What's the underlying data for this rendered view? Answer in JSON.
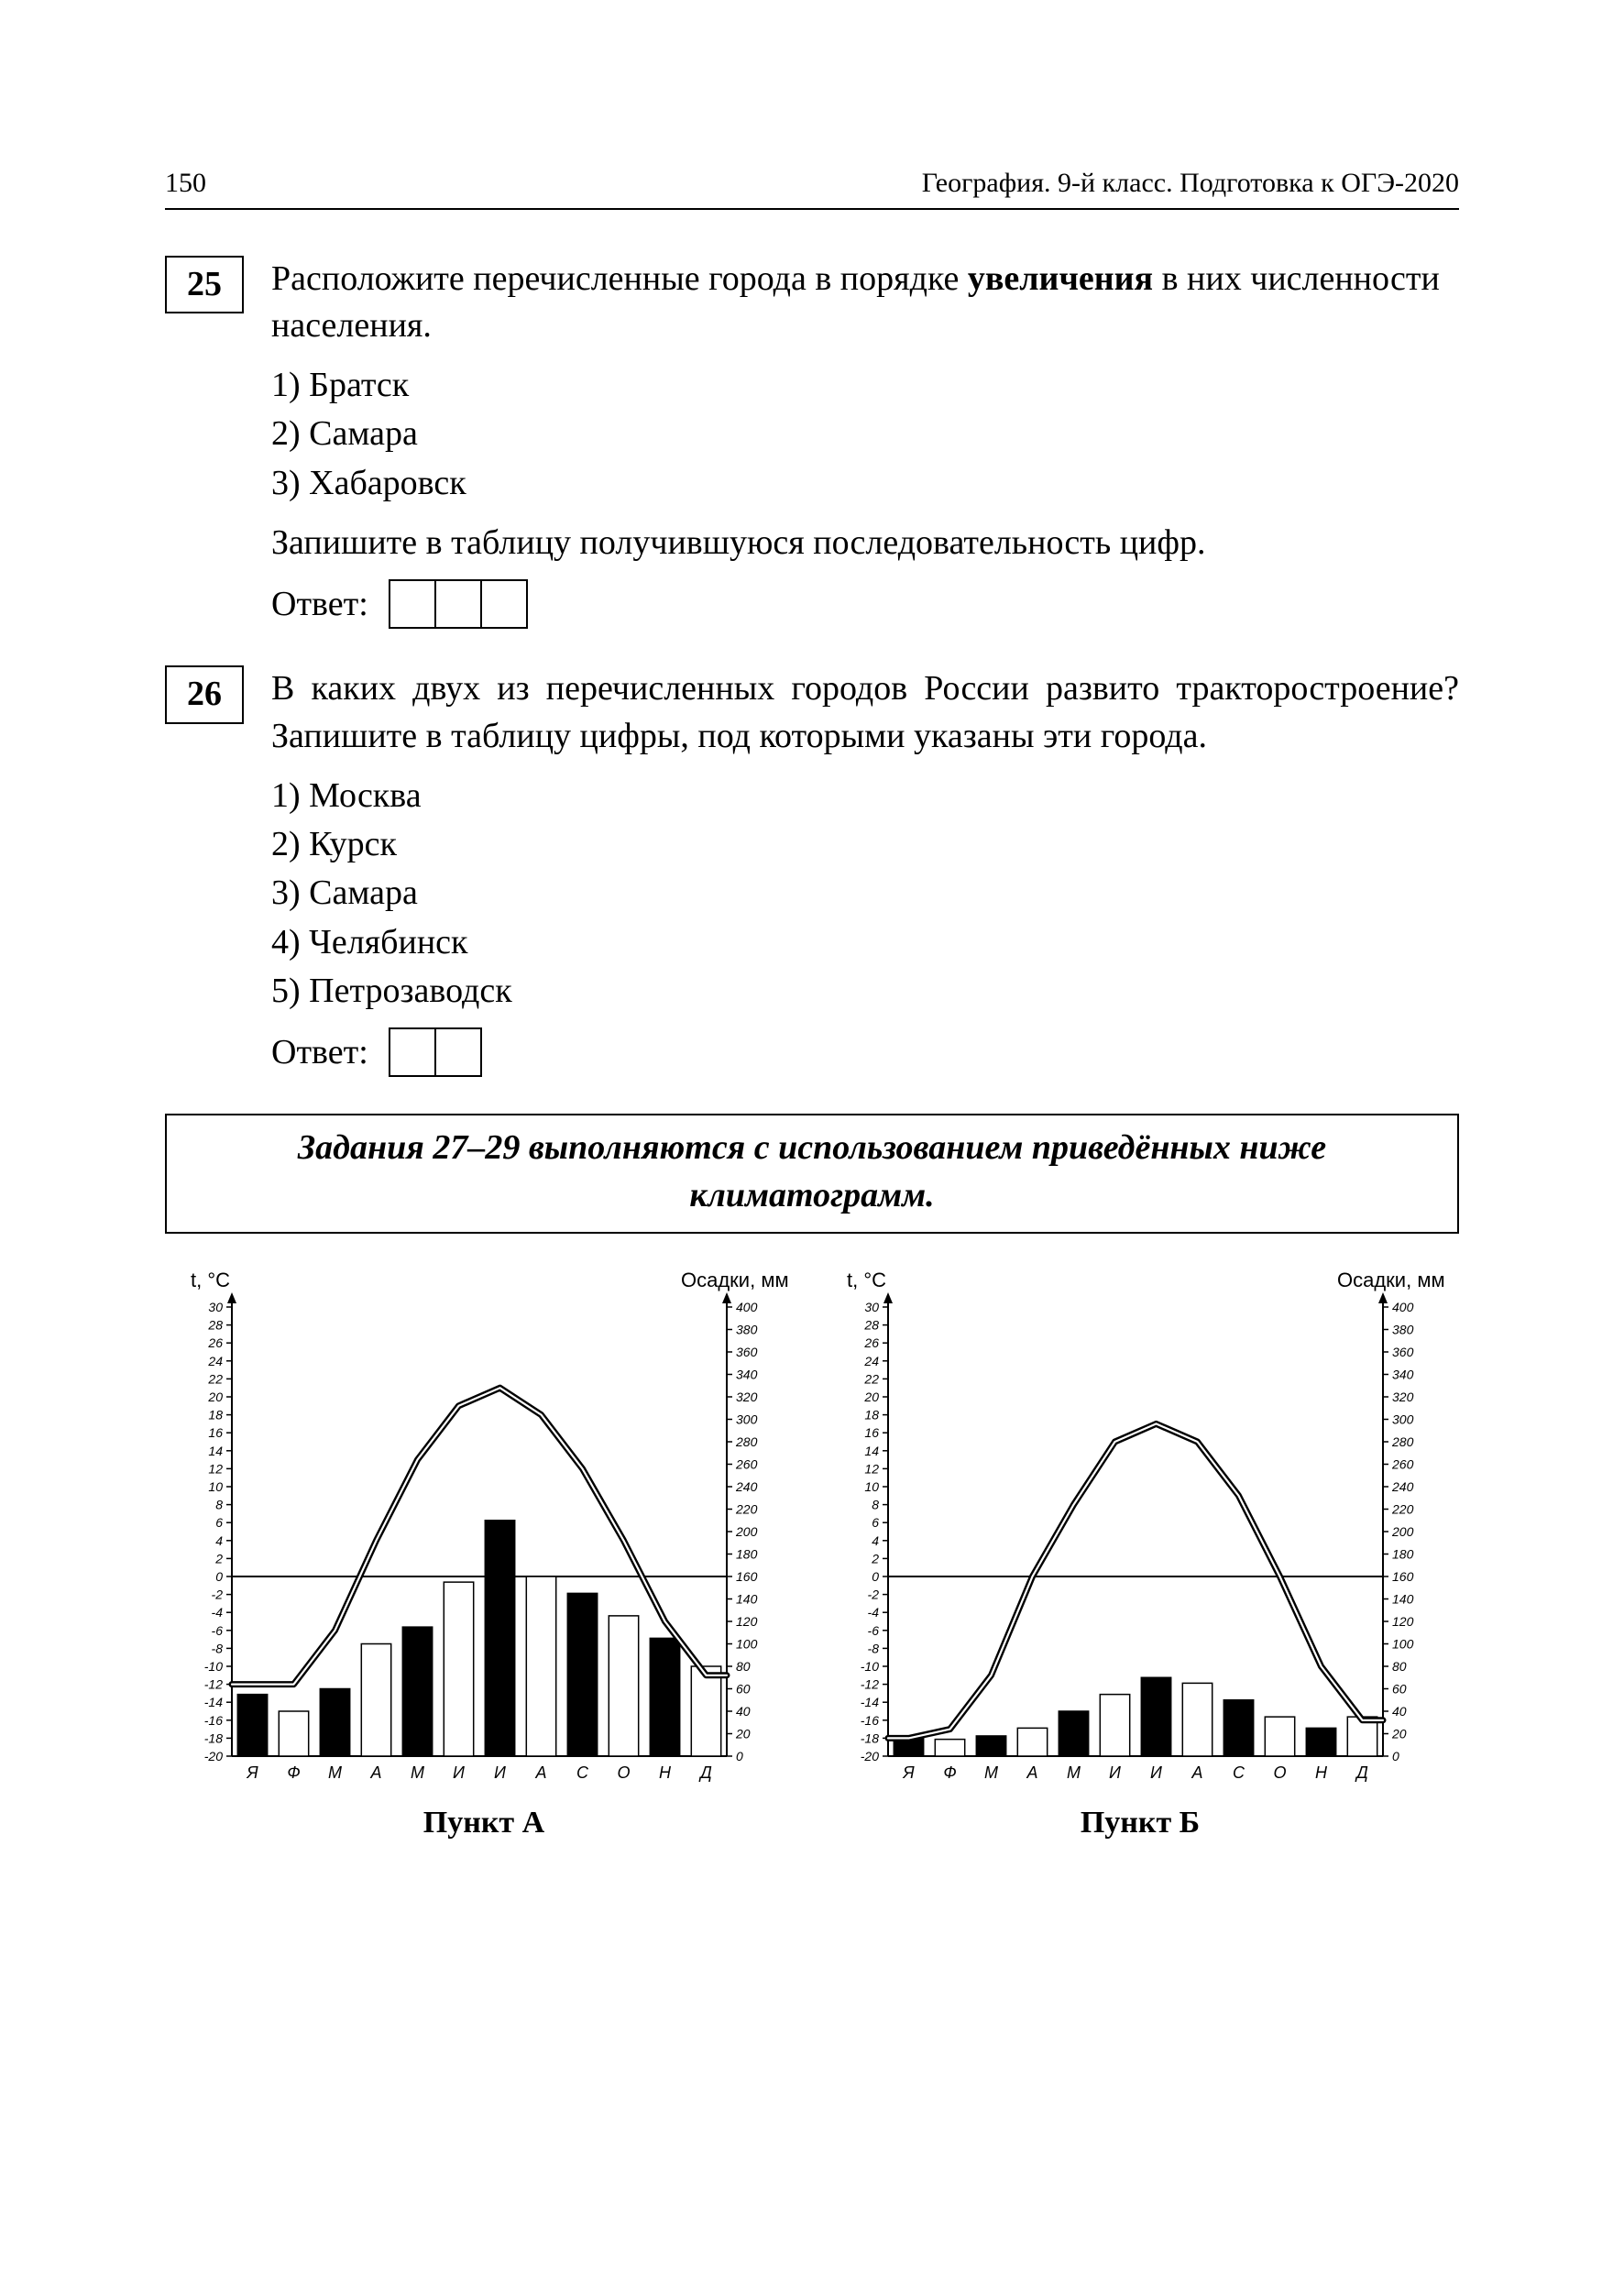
{
  "header": {
    "page_number": "150",
    "book_title": "География. 9-й класс. Подготовка к ОГЭ-2020"
  },
  "task25": {
    "number": "25",
    "text_before_bold": "Расположите перечисленные города в порядке ",
    "bold_word": "увеличения",
    "text_after_bold": " в них численности населения.",
    "options": [
      "1) Братск",
      "2) Самара",
      "3) Хабаровск"
    ],
    "instruction": "Запишите в таблицу получившуюся последовательность цифр.",
    "answer_label": "Ответ:",
    "answer_cells": 3
  },
  "task26": {
    "number": "26",
    "text": "В каких двух из перечисленных городов России развито трак­торостроение? Запишите в таблицу цифры, под которыми указаны эти города.",
    "options": [
      "1) Москва",
      "2) Курск",
      "3) Самара",
      "4) Челябинск",
      "5) Петрозаводск"
    ],
    "answer_label": "Ответ:",
    "answer_cells": 2
  },
  "instruction_box": {
    "line1": "Задания 27–29 выполняются с использованием приведённых ниже",
    "line2": "климатограмм."
  },
  "chart_common": {
    "left_axis_label": "t, °C",
    "right_axis_label": "Осадки, мм",
    "left_min": -20,
    "left_max": 30,
    "left_step": 2,
    "right_min": 0,
    "right_max": 400,
    "right_step": 20,
    "months": [
      "Я",
      "Ф",
      "М",
      "А",
      "М",
      "И",
      "И",
      "А",
      "С",
      "О",
      "Н",
      "Д"
    ],
    "bar_fill_pattern": [
      "#000000",
      "#ffffff",
      "#000000",
      "#ffffff",
      "#000000",
      "#ffffff",
      "#000000",
      "#ffffff",
      "#000000",
      "#ffffff",
      "#000000",
      "#ffffff"
    ],
    "bar_stroke": "#000000",
    "line_stroke": "#000000",
    "line_width": 2.5,
    "axis_stroke": "#000000",
    "tick_font_size": 14,
    "background": "#ffffff"
  },
  "chartA": {
    "caption": "Пункт А",
    "temps": [
      -12,
      -12,
      -6,
      4,
      13,
      19,
      21,
      18,
      12,
      4,
      -5,
      -11
    ],
    "precips": [
      55,
      40,
      60,
      100,
      115,
      155,
      210,
      160,
      145,
      125,
      105,
      80
    ]
  },
  "chartB": {
    "caption": "Пункт Б",
    "temps": [
      -18,
      -17,
      -11,
      0,
      8,
      15,
      17,
      15,
      9,
      0,
      -10,
      -16
    ],
    "precips": [
      18,
      15,
      18,
      25,
      40,
      55,
      70,
      65,
      50,
      35,
      25,
      35
    ]
  }
}
